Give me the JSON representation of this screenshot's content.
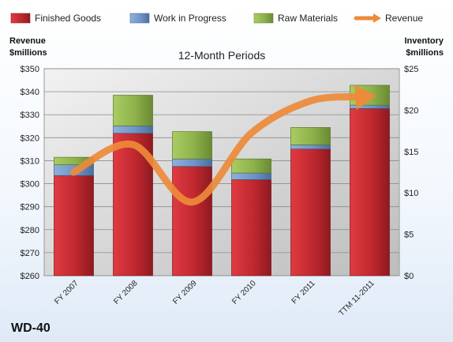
{
  "chart_data": {
    "type": "bar",
    "subtitle": "12-Month Periods",
    "company": "WD-40",
    "categories": [
      "FY 2007",
      "FY 2008",
      "FY 2009",
      "FY 2010",
      "FY 2011",
      "TTM 11-2011"
    ],
    "left_axis": {
      "title_line1": "Revenue",
      "title_line2": "$millions",
      "min": 260,
      "max": 350,
      "step": 10,
      "tick_labels": [
        "$260",
        "$270",
        "$280",
        "$290",
        "$300",
        "$310",
        "$320",
        "$330",
        "$340",
        "$350"
      ]
    },
    "right_axis": {
      "title_line1": "Inventory",
      "title_line2": "$millions",
      "min": 0,
      "max": 25,
      "step": 5,
      "tick_labels": [
        "$0",
        "$5",
        "$10",
        "$15",
        "$20",
        "$25"
      ]
    },
    "stack_series": [
      {
        "name": "Finished Goods",
        "color": "#c0282f",
        "values": [
          12.1,
          17.2,
          13.2,
          11.6,
          15.3,
          20.2
        ]
      },
      {
        "name": "Work in Progress",
        "color": "#6e95c8",
        "values": [
          1.3,
          0.9,
          0.9,
          0.8,
          0.5,
          0.4
        ]
      },
      {
        "name": "Raw Materials",
        "color": "#8fb14a",
        "values": [
          0.9,
          3.7,
          3.3,
          1.7,
          2.1,
          2.4
        ]
      }
    ],
    "line_series": {
      "name": "Revenue",
      "color": "#ee8a3a",
      "values": [
        305,
        317,
        292,
        322,
        336,
        338
      ]
    },
    "grid": true,
    "legend_position": "top"
  }
}
